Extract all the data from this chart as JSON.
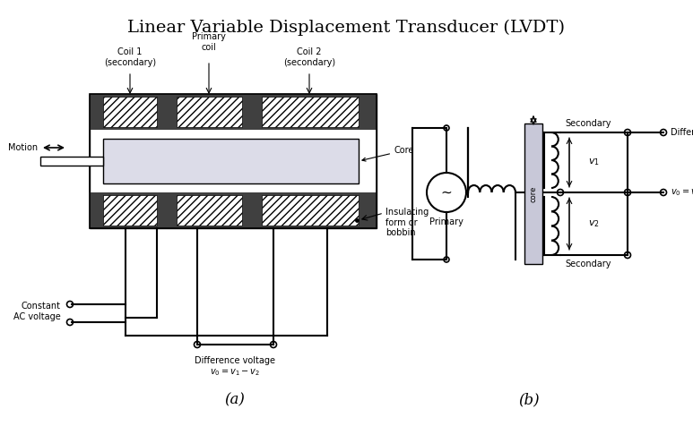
{
  "title": "Linear Variable Displacement Transducer (LVDT)",
  "title_fontsize": 14,
  "title_color": "#000000",
  "bg_color": "#ffffff",
  "label_a": "(a)",
  "label_b": "(b)",
  "colors": {
    "dark_gray": "#404040",
    "coil_hatch_bg": "#e8e8e8",
    "core_fill": "#e0e0e8",
    "wire": "#000000",
    "core_b_fill": "#d0d0d8"
  }
}
